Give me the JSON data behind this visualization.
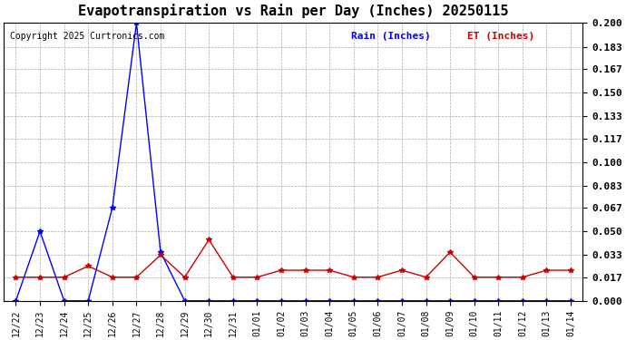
{
  "title": "Evapotranspiration vs Rain per Day (Inches) 20250115",
  "copyright": "Copyright 2025 Curtronics.com",
  "legend_rain": "Rain (Inches)",
  "legend_et": "ET (Inches)",
  "rain_color": "#0000ff",
  "et_color": "#cc0000",
  "background_color": "#ffffff",
  "grid_color": "#aaaaaa",
  "ylim": [
    0,
    0.2
  ],
  "yticks": [
    0.0,
    0.017,
    0.033,
    0.05,
    0.067,
    0.083,
    0.1,
    0.117,
    0.133,
    0.15,
    0.167,
    0.183,
    0.2
  ],
  "dates": [
    "12/22",
    "12/23",
    "12/24",
    "12/25",
    "12/26",
    "12/27",
    "12/28",
    "12/29",
    "12/30",
    "12/31",
    "01/01",
    "01/02",
    "01/03",
    "01/04",
    "01/05",
    "01/06",
    "01/07",
    "01/08",
    "01/09",
    "01/10",
    "01/11",
    "01/12",
    "01/13",
    "01/14"
  ],
  "rain": [
    0.0,
    0.05,
    0.0,
    0.0,
    0.067,
    0.2,
    0.035,
    0.0,
    0.0,
    0.0,
    0.0,
    0.0,
    0.0,
    0.0,
    0.0,
    0.0,
    0.0,
    0.0,
    0.0,
    0.0,
    0.0,
    0.0,
    0.0,
    0.0
  ],
  "et": [
    0.017,
    0.017,
    0.017,
    0.025,
    0.017,
    0.017,
    0.033,
    0.017,
    0.044,
    0.017,
    0.017,
    0.022,
    0.022,
    0.022,
    0.017,
    0.017,
    0.022,
    0.017,
    0.035,
    0.017,
    0.017,
    0.017,
    0.022,
    0.022
  ]
}
